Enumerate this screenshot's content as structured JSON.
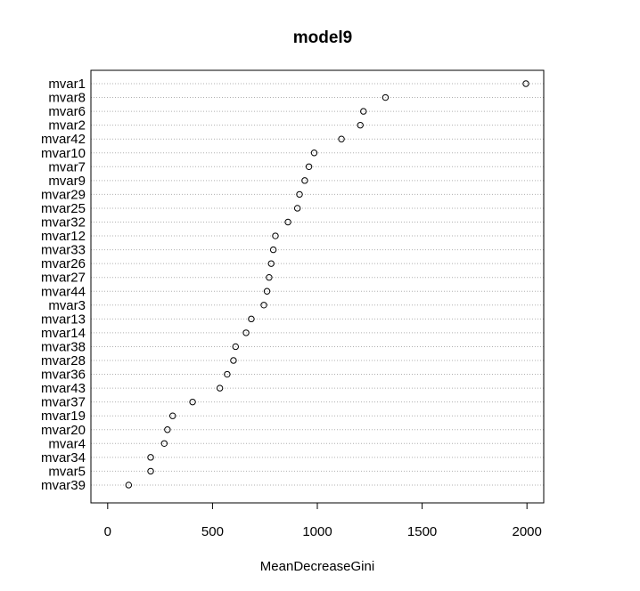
{
  "chart_data": {
    "type": "dotchart",
    "title": "model9",
    "xlabel": "MeanDecreaseGini",
    "ylabel": "",
    "xlim": [
      -80,
      2080
    ],
    "x_ticks": [
      0,
      500,
      1000,
      1500,
      2000
    ],
    "grid": "horizontal dotted lines per category",
    "categories": [
      "mvar1",
      "mvar8",
      "mvar6",
      "mvar2",
      "mvar42",
      "mvar10",
      "mvar7",
      "mvar9",
      "mvar29",
      "mvar25",
      "mvar32",
      "mvar12",
      "mvar33",
      "mvar26",
      "mvar27",
      "mvar44",
      "mvar3",
      "mvar13",
      "mvar14",
      "mvar38",
      "mvar28",
      "mvar36",
      "mvar43",
      "mvar37",
      "mvar19",
      "mvar20",
      "mvar4",
      "mvar34",
      "mvar5",
      "mvar39"
    ],
    "values": [
      1995,
      1325,
      1220,
      1205,
      1115,
      985,
      960,
      940,
      915,
      905,
      860,
      800,
      790,
      780,
      770,
      760,
      745,
      685,
      660,
      610,
      600,
      570,
      535,
      405,
      310,
      285,
      270,
      205,
      205,
      100
    ]
  }
}
